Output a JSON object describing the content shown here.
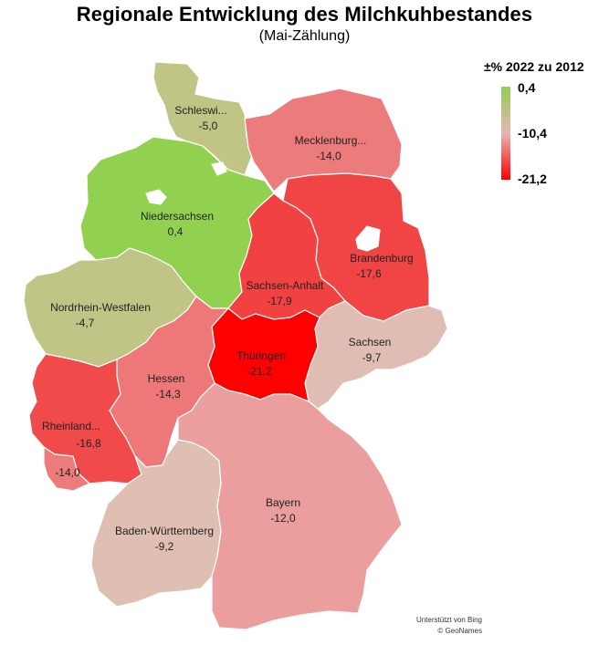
{
  "title": "Regionale Entwicklung des Milchkuhbestandes",
  "subtitle": "(Mai-Zählung)",
  "legend": {
    "title": "±% 2022 zu 2012",
    "max": "0,4",
    "mid": "-10,4",
    "min": "-21,2",
    "color_max": "#92d050",
    "color_mid": "#e8b4b4",
    "color_min": "#ff0000"
  },
  "credits": {
    "line1": "Unterstützt von Bing",
    "line2": "© GeoNames"
  },
  "regions": {
    "schleswig_holstein": {
      "name": "Schleswi...",
      "value": "-5,0",
      "color": "#c0c586"
    },
    "mecklenburg": {
      "name": "Mecklenburg...",
      "value": "-14,0",
      "color": "#ec7c7c"
    },
    "niedersachsen": {
      "name": "Niedersachsen",
      "value": "0,4",
      "color": "#92d050"
    },
    "brandenburg": {
      "name": "Brandenburg",
      "value": "-17,6",
      "color": "#f14545"
    },
    "sachsen_anhalt": {
      "name": "Sachsen-Anhalt",
      "value": "-17,9",
      "color": "#f24141"
    },
    "nrw": {
      "name": "Nordrhein-Westfalen",
      "value": "-4,7",
      "color": "#c0c586"
    },
    "sachsen": {
      "name": "Sachsen",
      "value": "-9,7",
      "color": "#e0bdb3"
    },
    "thueringen": {
      "name": "Thüringen",
      "value": "-21,2",
      "color": "#ff0000"
    },
    "hessen": {
      "name": "Hessen",
      "value": "-14,3",
      "color": "#ee7878"
    },
    "rheinland": {
      "name": "Rheinland...",
      "value": "-16,8",
      "color": "#f14a4a"
    },
    "saarland": {
      "name": "",
      "value": "-14,0",
      "color": "#ec7c7c"
    },
    "bayern": {
      "name": "Bayern",
      "value": "-12,0",
      "color": "#ea9e9e"
    },
    "bw": {
      "name": "Baden-Württemberg",
      "value": "-9,2",
      "color": "#dfbfb1"
    },
    "berlin": {
      "color": "#ffffff"
    },
    "hamburg": {
      "color": "#ffffff"
    },
    "bremen": {
      "color": "#ffffff"
    }
  }
}
